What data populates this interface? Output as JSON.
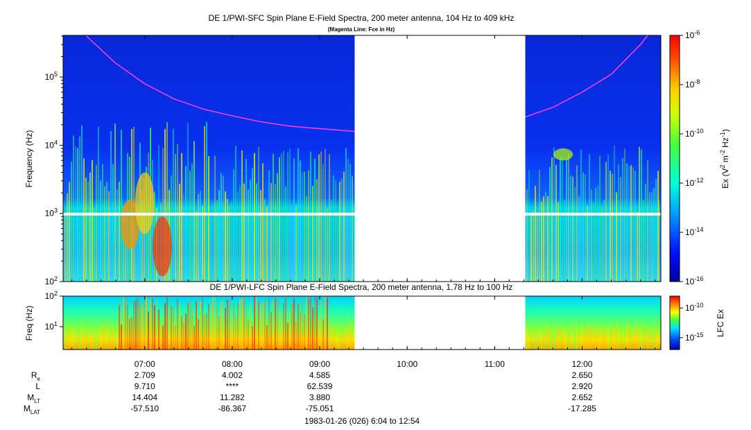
{
  "chart_data": [
    {
      "type": "heatmap",
      "title": "DE 1/PWI-SFC  Spin Plane E-Field Spectra, 200 meter antenna, 104 Hz to 409 kHz",
      "subtitle": "(Magenta Line: Fce in Hz)",
      "ylabel": "Frequency (Hz)",
      "yscale": "log",
      "ylim": [
        100,
        409000
      ],
      "yticks": [
        {
          "base": "10",
          "exp": "2"
        },
        {
          "base": "10",
          "exp": "3"
        },
        {
          "base": "10",
          "exp": "4"
        },
        {
          "base": "10",
          "exp": "5"
        }
      ],
      "colorbar": {
        "label": "Ex (V² m⁻² Hz⁻¹)",
        "label_parts": [
          "Ex (V",
          "2",
          " m",
          "-2",
          " Hz",
          "-1",
          ")"
        ],
        "range": [
          1e-16,
          1e-06
        ],
        "ticks": [
          {
            "base": "10",
            "exp": "-6"
          },
          {
            "base": "10",
            "exp": "-8"
          },
          {
            "base": "10",
            "exp": "-10"
          },
          {
            "base": "10",
            "exp": "-12"
          },
          {
            "base": "10",
            "exp": "-14"
          },
          {
            "base": "10",
            "exp": "-16"
          }
        ]
      },
      "data_gap": {
        "start": "09:24",
        "end": "11:21"
      },
      "fce_line": {
        "color": "#ff40ff",
        "x": [
          "6:20",
          "6:40",
          "7:00",
          "7:20",
          "7:40",
          "8:00",
          "8:20",
          "8:40",
          "9:00",
          "9:24",
          "11:21",
          "11:40",
          "12:00",
          "12:20",
          "12:40",
          "12:45"
        ],
        "y": [
          400000,
          160000,
          80000,
          48000,
          34000,
          27000,
          22000,
          19000,
          17500,
          16000,
          26000,
          36000,
          60000,
          110000,
          300000,
          409000
        ]
      }
    },
    {
      "type": "heatmap",
      "title": "DE 1/PWI-LFC  Spin Plane E-Field Spectra, 200 meter antenna, 1.78 Hz to 100 Hz",
      "ylabel": "Freq (Hz)",
      "yscale": "log",
      "ylim": [
        1.78,
        100
      ],
      "yticks": [
        {
          "base": "10",
          "exp": "1"
        },
        {
          "base": "10",
          "exp": "2"
        }
      ],
      "colorbar": {
        "label": "LFC Ex",
        "ticks": [
          {
            "base": "10",
            "exp": "-10"
          },
          {
            "base": "10",
            "exp": "-15"
          }
        ]
      },
      "data_gap": {
        "start": "09:24",
        "end": "11:21"
      }
    }
  ],
  "time_axis": {
    "range": [
      "6:04",
      "12:54"
    ],
    "ticks": [
      "07:00",
      "08:00",
      "09:00",
      "10:00",
      "11:00",
      "12:00"
    ],
    "caption": "1983-01-26 (026) 6:04 to 12:54"
  },
  "ephemeris": [
    {
      "label": "R",
      "sub": "e",
      "values": [
        "2.709",
        "4.002",
        "4.585",
        "",
        "",
        "2.650"
      ]
    },
    {
      "label": "L",
      "sub": "",
      "values": [
        "9.710",
        "****",
        "62.539",
        "",
        "",
        "2.920"
      ]
    },
    {
      "label": "M",
      "sub": "LT",
      "values": [
        "14.404",
        "11.282",
        "3.880",
        "",
        "",
        "2.652"
      ]
    },
    {
      "label": "M",
      "sub": "LAT",
      "values": [
        "-57.510",
        "-86.367",
        "-75.051",
        "",
        "",
        "-17.285"
      ]
    }
  ]
}
